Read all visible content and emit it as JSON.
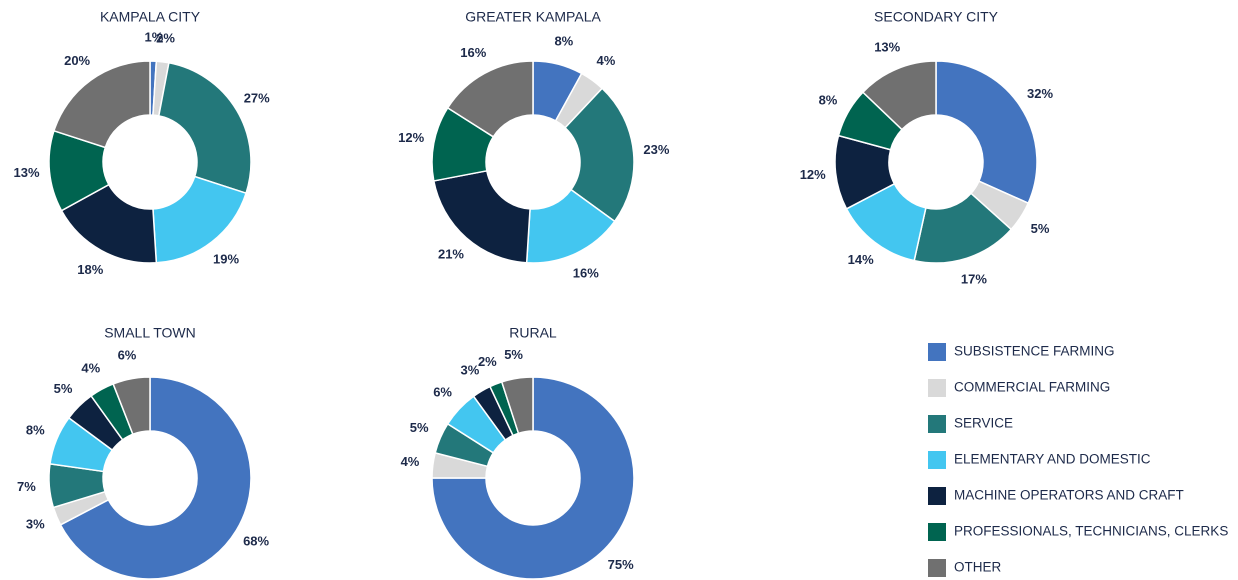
{
  "chart_data": [
    {
      "type": "pie",
      "title": "KAMPALA CITY",
      "categories": [
        "SUBSISTENCE FARMING",
        "COMMERCIAL FARMING",
        "SERVICE",
        "ELEMENTARY AND DOMESTIC",
        "MACHINE OPERATORS AND CRAFT",
        "PROFESSIONALS, TECHNICIANS, CLERKS",
        "OTHER"
      ],
      "values": [
        1,
        2,
        27,
        19,
        18,
        13,
        20
      ],
      "value_labels": [
        "1%",
        "2%",
        "27%",
        "19%",
        "18%",
        "13%",
        "20%"
      ],
      "colors": [
        "#4374bf",
        "#d9d9d9",
        "#23787a",
        "#43c6f0",
        "#0d2240",
        "#006450",
        "#707070"
      ]
    },
    {
      "type": "pie",
      "title": "GREATER KAMPALA",
      "categories": [
        "SUBSISTENCE FARMING",
        "COMMERCIAL FARMING",
        "SERVICE",
        "ELEMENTARY AND DOMESTIC",
        "MACHINE OPERATORS AND CRAFT",
        "PROFESSIONALS, TECHNICIANS, CLERKS",
        "OTHER"
      ],
      "values": [
        8,
        4,
        23,
        16,
        21,
        12,
        16
      ],
      "value_labels": [
        "8%",
        "4%",
        "23%",
        "16%",
        "21%",
        "12%",
        "16%"
      ],
      "colors": [
        "#4374bf",
        "#d9d9d9",
        "#23787a",
        "#43c6f0",
        "#0d2240",
        "#006450",
        "#707070"
      ]
    },
    {
      "type": "pie",
      "title": "SECONDARY CITY",
      "categories": [
        "SUBSISTENCE FARMING",
        "COMMERCIAL FARMING",
        "SERVICE",
        "ELEMENTARY AND DOMESTIC",
        "MACHINE OPERATORS AND CRAFT",
        "PROFESSIONALS, TECHNICIANS, CLERKS",
        "OTHER"
      ],
      "values": [
        32,
        5,
        17,
        14,
        12,
        8,
        13
      ],
      "value_labels": [
        "32%",
        "5%",
        "17%",
        "14%",
        "12%",
        "8%",
        "13%"
      ],
      "colors": [
        "#4374bf",
        "#d9d9d9",
        "#23787a",
        "#43c6f0",
        "#0d2240",
        "#006450",
        "#707070"
      ]
    },
    {
      "type": "pie",
      "title": "SMALL TOWN",
      "categories": [
        "SUBSISTENCE FARMING",
        "COMMERCIAL FARMING",
        "SERVICE",
        "ELEMENTARY AND DOMESTIC",
        "MACHINE OPERATORS AND CRAFT",
        "PROFESSIONALS, TECHNICIANS, CLERKS",
        "OTHER"
      ],
      "values": [
        68,
        3,
        7,
        8,
        5,
        4,
        6
      ],
      "value_labels": [
        "68%",
        "3%",
        "7%",
        "8%",
        "5%",
        "4%",
        "6%"
      ],
      "colors": [
        "#4374bf",
        "#d9d9d9",
        "#23787a",
        "#43c6f0",
        "#0d2240",
        "#006450",
        "#707070"
      ]
    },
    {
      "type": "pie",
      "title": "RURAL",
      "categories": [
        "SUBSISTENCE FARMING",
        "COMMERCIAL FARMING",
        "SERVICE",
        "ELEMENTARY AND DOMESTIC",
        "MACHINE OPERATORS AND CRAFT",
        "PROFESSIONALS, TECHNICIANS, CLERKS",
        "OTHER"
      ],
      "values": [
        75,
        4,
        5,
        6,
        3,
        2,
        5
      ],
      "value_labels": [
        "75%",
        "4%",
        "5%",
        "6%",
        "3%",
        "2%",
        "5%"
      ],
      "colors": [
        "#4374bf",
        "#d9d9d9",
        "#23787a",
        "#43c6f0",
        "#0d2240",
        "#006450",
        "#707070"
      ]
    }
  ]
}
